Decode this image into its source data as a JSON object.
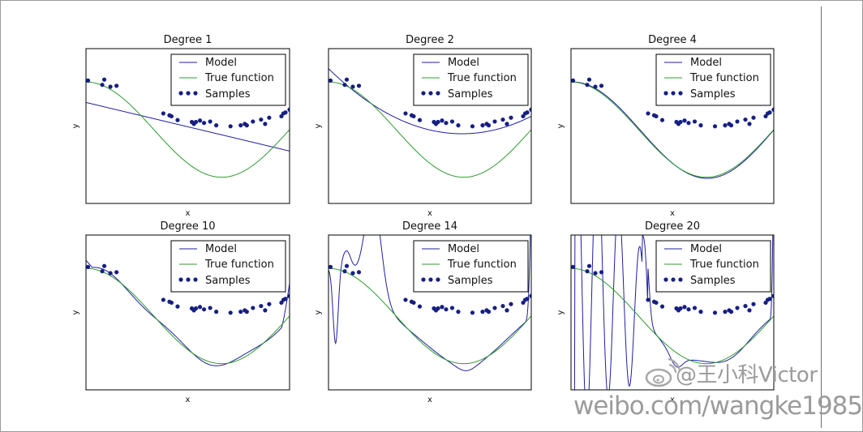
{
  "chart_data": [
    {
      "type": "line",
      "title": "Degree 1",
      "xlabel": "x",
      "ylabel": "y",
      "legend_loc": "upper right",
      "legend": [
        "Model",
        "True function",
        "Samples"
      ],
      "model": "degree1"
    },
    {
      "type": "line",
      "title": "Degree 2",
      "xlabel": "x",
      "ylabel": "y",
      "legend_loc": "upper right",
      "legend": [
        "Model",
        "True function",
        "Samples"
      ],
      "model": "degree2"
    },
    {
      "type": "line",
      "title": "Degree 4",
      "xlabel": "x",
      "ylabel": "y",
      "legend_loc": "upper right",
      "legend": [
        "Model",
        "True function",
        "Samples"
      ],
      "model": "degree4"
    },
    {
      "type": "line",
      "title": "Degree 10",
      "xlabel": "x",
      "ylabel": "y",
      "legend_loc": "upper right",
      "legend": [
        "Model",
        "True function",
        "Samples"
      ],
      "model": "degree10"
    },
    {
      "type": "line",
      "title": "Degree 14",
      "xlabel": "x",
      "ylabel": "y",
      "legend_loc": "upper right",
      "legend": [
        "Model",
        "True function",
        "Samples"
      ],
      "model": "degree14"
    },
    {
      "type": "line",
      "title": "Degree 20",
      "xlabel": "x",
      "ylabel": "y",
      "legend_loc": "upper right",
      "legend": [
        "Model",
        "True function",
        "Samples"
      ],
      "model": "degree20"
    }
  ],
  "samples": {
    "x": [
      0.01,
      0.08,
      0.09,
      0.12,
      0.15,
      0.38,
      0.41,
      0.42,
      0.45,
      0.52,
      0.53,
      0.54,
      0.56,
      0.58,
      0.61,
      0.64,
      0.71,
      0.76,
      0.78,
      0.79,
      0.82,
      0.86,
      0.88,
      0.9,
      0.96,
      0.97,
      0.98,
      1.0
    ],
    "y": [
      1.03,
      0.94,
      1.05,
      0.9,
      0.92,
      0.34,
      0.3,
      0.28,
      0.2,
      0.16,
      0.12,
      0.16,
      0.19,
      0.14,
      0.17,
      0.09,
      0.07,
      0.09,
      0.12,
      0.09,
      0.17,
      0.21,
      0.12,
      0.25,
      0.28,
      0.34,
      0.36,
      0.42
    ]
  },
  "colors": {
    "model": "#1f1fa0",
    "true_function": "#2e9a2e",
    "samples": "#161f82",
    "axes": "#000000"
  },
  "watermark": {
    "handle": "@王小科Victor",
    "url": "weibo.com/wangke1985"
  }
}
